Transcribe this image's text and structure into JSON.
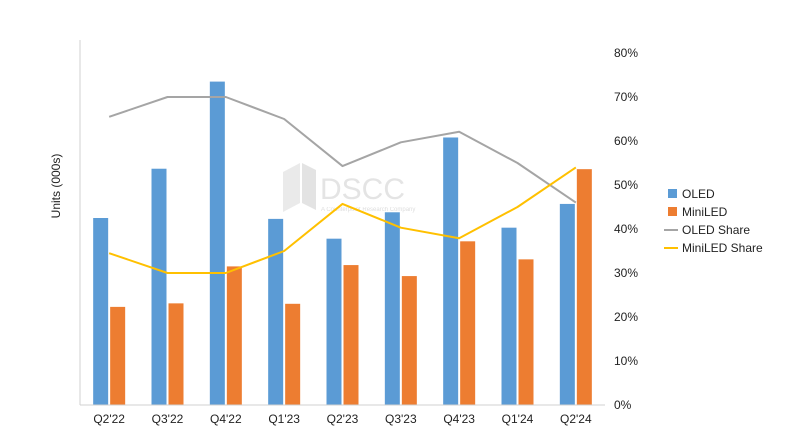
{
  "chart_data": {
    "type": "bar",
    "categories": [
      "Q2'22",
      "Q3'22",
      "Q4'22",
      "Q1'23",
      "Q2'23",
      "Q3'23",
      "Q4'23",
      "Q1'24",
      "Q2'24"
    ],
    "ylabel": "Units  (000s)",
    "y2_ticks": [
      "0%",
      "10%",
      "20%",
      "30%",
      "40%",
      "50%",
      "60%",
      "70%",
      "80%"
    ],
    "y2lim": [
      0,
      80
    ],
    "left_axis_ticks_shown": false,
    "grid": false,
    "legend_position": "right",
    "series": [
      {
        "name": "OLED",
        "kind": "bar",
        "axis": "left",
        "color": "#5b9bd5",
        "values": [
          42.5,
          53.7,
          73.5,
          42.3,
          37.8,
          43.8,
          60.8,
          40.3,
          45.7
        ]
      },
      {
        "name": "MiniLED",
        "kind": "bar",
        "axis": "left",
        "color": "#ed7d31",
        "values": [
          22.3,
          23.1,
          31.5,
          23.0,
          31.8,
          29.3,
          37.2,
          33.1,
          53.6
        ]
      },
      {
        "name": "OLED Share",
        "kind": "line",
        "axis": "right",
        "color": "#a5a5a5",
        "values": [
          65.5,
          70.0,
          70.0,
          65.0,
          54.3,
          59.7,
          62.1,
          55.0,
          46.0
        ]
      },
      {
        "name": "MiniLED Share",
        "kind": "line",
        "axis": "right",
        "color": "#ffc000",
        "values": [
          34.5,
          30.0,
          30.0,
          35.0,
          45.7,
          40.3,
          37.9,
          45.0,
          54.0
        ]
      }
    ]
  },
  "watermark": {
    "logo_text": "DSCC",
    "tagline": "A Counterpoint Research Company"
  }
}
